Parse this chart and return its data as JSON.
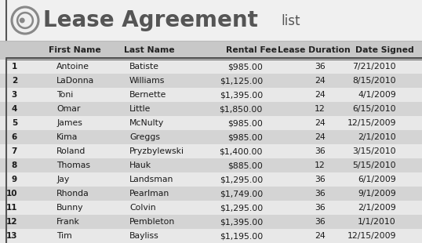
{
  "title": "Lease Agreement",
  "title_suffix": "list",
  "columns": [
    "",
    "First Name",
    "Last Name",
    "Rental Fee",
    "Lease Duration",
    "Date Signed"
  ],
  "records": [
    [
      "1",
      "Antoine",
      "Batiste",
      "$985.00",
      "36",
      "7/21/2010"
    ],
    [
      "2",
      "LaDonna",
      "Williams",
      "$1,125.00",
      "24",
      "8/15/2010"
    ],
    [
      "3",
      "Toni",
      "Bernette",
      "$1,395.00",
      "24",
      "4/1/2009"
    ],
    [
      "4",
      "Omar",
      "Little",
      "$1,850.00",
      "12",
      "6/15/2010"
    ],
    [
      "5",
      "James",
      "McNulty",
      "$985.00",
      "24",
      "12/15/2009"
    ],
    [
      "6",
      "Kima",
      "Greggs",
      "$985.00",
      "24",
      "2/1/2010"
    ],
    [
      "7",
      "Roland",
      "Pryzbylewski",
      "$1,400.00",
      "36",
      "3/15/2010"
    ],
    [
      "8",
      "Thomas",
      "Hauk",
      "$885.00",
      "12",
      "5/15/2010"
    ],
    [
      "9",
      "Jay",
      "Landsman",
      "$1,295.00",
      "36",
      "6/1/2009"
    ],
    [
      "10",
      "Rhonda",
      "Pearlman",
      "$1,749.00",
      "36",
      "9/1/2009"
    ],
    [
      "11",
      "Bunny",
      "Colvin",
      "$1,295.00",
      "36",
      "2/1/2009"
    ],
    [
      "12",
      "Frank",
      "Pembleton",
      "$1,395.00",
      "36",
      "1/1/2010"
    ],
    [
      "13",
      "Tim",
      "Bayliss",
      "$1,195.00",
      "24",
      "12/15/2009"
    ]
  ],
  "title_bg": "#e8e8e8",
  "header_bg": "#cccccc",
  "row_bg_odd": "#e8e8e8",
  "row_bg_even": "#d4d4d4",
  "overall_bg": "#c8c8c8",
  "title_color": "#555555",
  "text_color": "#1a1a1a",
  "header_text_color": "#222222",
  "data_font_size": 7.8,
  "header_font_size": 7.8,
  "title_font_size": 20,
  "suffix_font_size": 12
}
